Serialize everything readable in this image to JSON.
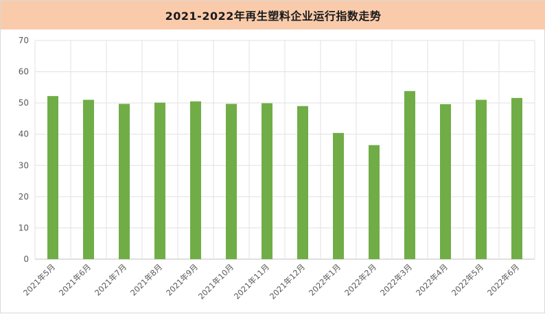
{
  "chart_data": {
    "type": "bar",
    "title": "2021-2022年再生塑料企业运行指数走势",
    "xlabel": "",
    "ylabel": "",
    "categories": [
      "2021年5月",
      "2021年6月",
      "2021年7月",
      "2021年8月",
      "2021年9月",
      "2021年10月",
      "2021年11月",
      "2021年12月",
      "2022年1月",
      "2022年2月",
      "2022年3月",
      "2022年4月",
      "2022年5月",
      "2022年6月"
    ],
    "values": [
      52.2,
      51.0,
      49.7,
      50.1,
      50.5,
      49.7,
      49.9,
      49.0,
      40.4,
      36.5,
      53.8,
      49.6,
      51.0,
      51.6
    ],
    "ylim": [
      0,
      70
    ],
    "yticks": [
      0,
      10,
      20,
      30,
      40,
      50,
      60,
      70
    ],
    "grid": true,
    "legend": "none",
    "colors": {
      "bar": "#70ad47",
      "title_background": "#f9cbab",
      "grid": "#e0e0e0"
    }
  }
}
